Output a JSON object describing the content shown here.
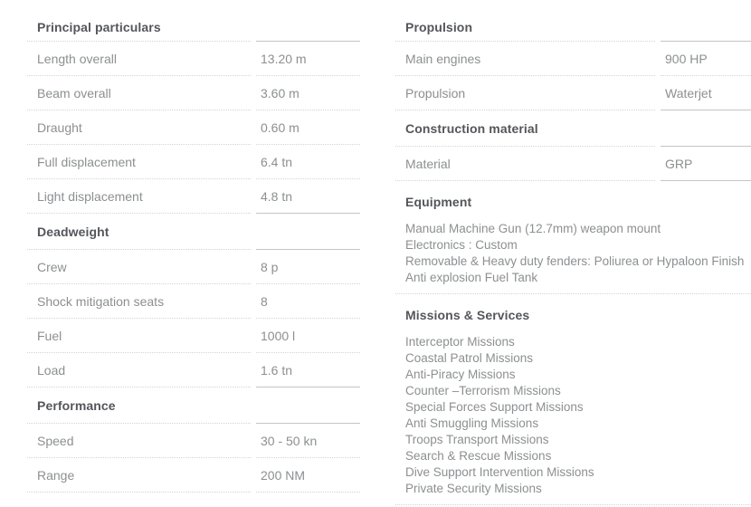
{
  "colors": {
    "background": "#ffffff",
    "header_text": "#54565a",
    "body_text": "#8c8f91",
    "divider_dotted": "#d4d4d4",
    "divider_solid": "#c3c5c6"
  },
  "left_column": {
    "sections": [
      {
        "type": "table",
        "title": "Principal particulars",
        "rows": [
          {
            "label": "Length overall",
            "value": "13.20 m"
          },
          {
            "label": "Beam overall",
            "value": "3.60 m"
          },
          {
            "label": "Draught",
            "value": "0.60 m"
          },
          {
            "label": "Full displacement",
            "value": "6.4 tn"
          },
          {
            "label": "Light displacement",
            "value": "4.8 tn"
          }
        ]
      },
      {
        "type": "table",
        "title": "Deadweight",
        "rows": [
          {
            "label": "Crew",
            "value": "8 p"
          },
          {
            "label": "Shock mitigation seats",
            "value": "8"
          },
          {
            "label": "Fuel",
            "value": "1000 l"
          },
          {
            "label": "Load",
            "value": "1.6 tn"
          }
        ]
      },
      {
        "type": "table",
        "title": "Performance",
        "rows": [
          {
            "label": "Speed",
            "value": "30 - 50 kn"
          },
          {
            "label": "Range",
            "value": "200 NM"
          }
        ]
      }
    ]
  },
  "right_column": {
    "sections": [
      {
        "type": "table",
        "title": "Propulsion",
        "rows": [
          {
            "label": "Main engines",
            "value": "900 HP"
          },
          {
            "label": "Propulsion",
            "value": "Waterjet"
          }
        ]
      },
      {
        "type": "table",
        "title": "Construction material",
        "rows": [
          {
            "label": "Material",
            "value": "GRP"
          }
        ]
      },
      {
        "type": "list",
        "title": "Equipment",
        "items": [
          "Manual Machine Gun (12.7mm) weapon mount",
          "Electronics : Custom",
          "Removable & Heavy duty fenders: Poliurea or Hypaloon Finish",
          "Anti explosion Fuel Tank"
        ]
      },
      {
        "type": "list",
        "title": "Missions & Services",
        "items": [
          "Interceptor Missions",
          "Coastal Patrol Missions",
          "Anti-Piracy Missions",
          "Counter –Terrorism Missions",
          "Special Forces Support Missions",
          "Anti Smuggling Missions",
          "Troops Transport Missions",
          "Search & Rescue Missions",
          "Dive Support Intervention Missions",
          "Private Security Missions"
        ]
      }
    ]
  }
}
